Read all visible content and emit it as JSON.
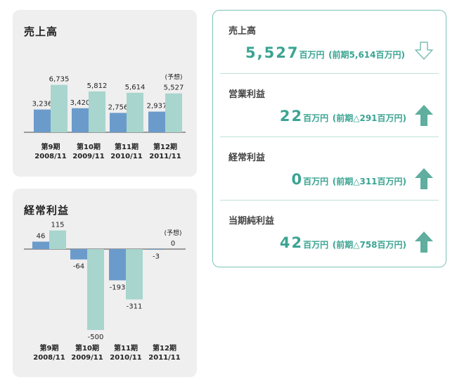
{
  "charts": {
    "sales": {
      "title": "売上高"
    },
    "ordinary": {
      "title": "経常利益"
    }
  },
  "chart_data": [
    {
      "type": "bar",
      "title": "売上高",
      "categories": [
        "第9期\n2008/11",
        "第10期\n2009/11",
        "第11期\n2010/11",
        "第12期\n2011/11"
      ],
      "series": [
        {
          "values": [
            3236,
            3420,
            2756,
            2937
          ],
          "labels": [
            "3,236",
            "3,420",
            "2,756",
            "2,937"
          ],
          "color": "#6b9bcb"
        },
        {
          "values": [
            6735,
            5812,
            5614,
            5527
          ],
          "labels": [
            "6,735",
            "5,812",
            "5,614",
            "5,527"
          ],
          "color": "#a8d5cd"
        }
      ],
      "annotation": {
        "category_index": 3,
        "text": "(予想)"
      },
      "ylim": [
        0,
        7000
      ]
    },
    {
      "type": "bar",
      "title": "経常利益",
      "categories": [
        "第9期\n2008/11",
        "第10期\n2009/11",
        "第11期\n2010/11",
        "第12期\n2011/11"
      ],
      "series": [
        {
          "values": [
            46,
            -64,
            -193,
            -3
          ],
          "labels": [
            "46",
            "-64",
            "-193",
            "-3"
          ],
          "color": "#6b9bcb"
        },
        {
          "values": [
            115,
            -500,
            -311,
            0
          ],
          "labels": [
            "115",
            "-500",
            "-311",
            "0"
          ],
          "color": "#a8d5cd"
        }
      ],
      "annotation": {
        "category_index": 3,
        "text": "(予想)"
      },
      "ylim": [
        -520,
        130
      ]
    }
  ],
  "summary": {
    "rows": [
      {
        "label": "売上高",
        "value": "5,527",
        "unit": "百万円",
        "prev": "(前期5,614百万円)",
        "arrow": "down-outline-icon"
      },
      {
        "label": "営業利益",
        "value": "22",
        "unit": "百万円",
        "prev": "(前期△291百万円)",
        "arrow": "up-solid-icon"
      },
      {
        "label": "経常利益",
        "value": "0",
        "unit": "百万円",
        "prev": "(前期△311百万円)",
        "arrow": "up-solid-icon"
      },
      {
        "label": "当期純利益",
        "value": "42",
        "unit": "百万円",
        "prev": "(前期△758百万円)",
        "arrow": "up-solid-icon"
      }
    ],
    "accent": "#3aa492",
    "arrow_color": "#5fae9e"
  }
}
